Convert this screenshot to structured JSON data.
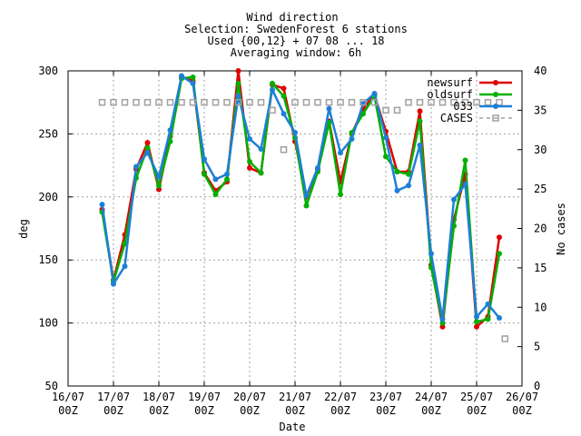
{
  "chart_data": {
    "type": "line",
    "title_lines": [
      "Wind direction",
      "Selection: SwedenForest       6 stations",
      "Used {00,12} + 07 08 ... 18",
      "Averaging window:  6h"
    ],
    "xlabel": "Date",
    "ylabel": "deg",
    "y2label": "No cases",
    "ylim": [
      50,
      300
    ],
    "y2lim": [
      0,
      40
    ],
    "yticks": [
      50,
      100,
      150,
      200,
      250,
      300
    ],
    "y2ticks": [
      0,
      5,
      10,
      15,
      20,
      25,
      30,
      35,
      40
    ],
    "xlim": [
      "16/07 00Z",
      "26/07 00Z"
    ],
    "xticks": [
      {
        "line1": "16/07",
        "line2": "00Z"
      },
      {
        "line1": "17/07",
        "line2": "00Z"
      },
      {
        "line1": "18/07",
        "line2": "00Z"
      },
      {
        "line1": "19/07",
        "line2": "00Z"
      },
      {
        "line1": "20/07",
        "line2": "00Z"
      },
      {
        "line1": "21/07",
        "line2": "00Z"
      },
      {
        "line1": "22/07",
        "line2": "00Z"
      },
      {
        "line1": "23/07",
        "line2": "00Z"
      },
      {
        "line1": "24/07",
        "line2": "00Z"
      },
      {
        "line1": "25/07",
        "line2": "00Z"
      },
      {
        "line1": "26/07",
        "line2": "00Z"
      }
    ],
    "grid": true,
    "legend_position": "top-right",
    "x_days": [
      0.75,
      1.0,
      1.25,
      1.5,
      1.75,
      2.0,
      2.25,
      2.5,
      2.75,
      3.0,
      3.25,
      3.5,
      3.75,
      4.0,
      4.25,
      4.5,
      4.75,
      5.0,
      5.25,
      5.5,
      5.75,
      6.0,
      6.25,
      6.5,
      6.75,
      7.0,
      7.25,
      7.5,
      7.75,
      8.0,
      8.25,
      8.5,
      8.75,
      9.0,
      9.25,
      9.5,
      9.625
    ],
    "series": [
      {
        "name": "newsurf",
        "color": "#e00000",
        "marker": "circle",
        "values": [
          190,
          134,
          170,
          222,
          243,
          206,
          248,
          295,
          292,
          219,
          205,
          212,
          300,
          223,
          219,
          289,
          286,
          244,
          200,
          222,
          260,
          212,
          250,
          270,
          281,
          252,
          220,
          220,
          268,
          146,
          97,
          182,
          218,
          97,
          105,
          168,
          null
        ]
      },
      {
        "name": "oldsurf",
        "color": "#00b000",
        "marker": "circle",
        "values": [
          188,
          133,
          163,
          215,
          239,
          209,
          244,
          294,
          295,
          218,
          202,
          214,
          290,
          228,
          219,
          290,
          280,
          247,
          193,
          220,
          259,
          202,
          251,
          266,
          280,
          232,
          220,
          218,
          260,
          144,
          100,
          177,
          229,
          101,
          103,
          155,
          null
        ]
      },
      {
        "name": "033",
        "color": "#1e7fd7",
        "marker": "circle",
        "values": [
          194,
          131,
          145,
          224,
          235,
          216,
          253,
          296,
          290,
          230,
          214,
          218,
          280,
          246,
          238,
          285,
          266,
          251,
          201,
          223,
          270,
          235,
          246,
          274,
          282,
          247,
          205,
          209,
          241,
          155,
          103,
          198,
          210,
          105,
          115,
          104,
          null
        ]
      },
      {
        "name": "CASES",
        "color": "#a0a0a0",
        "marker": "square-open",
        "axis": "y2",
        "values": [
          36,
          36,
          36,
          36,
          36,
          36,
          36,
          36,
          36,
          36,
          36,
          36,
          36,
          36,
          36,
          35,
          30,
          36,
          36,
          36,
          36,
          36,
          36,
          36,
          36,
          35,
          35,
          36,
          36,
          36,
          36,
          36,
          36,
          36,
          36,
          36,
          6
        ]
      }
    ]
  }
}
